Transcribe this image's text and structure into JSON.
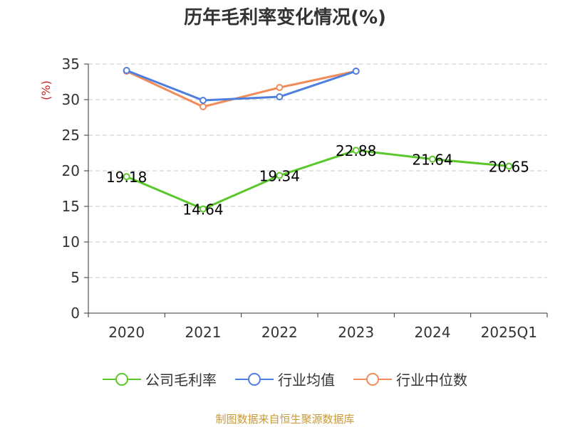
{
  "chart_data": {
    "type": "line",
    "title": "历年毛利率变化情况(%)",
    "ylabel": "(%)",
    "categories": [
      "2020",
      "2021",
      "2022",
      "2023",
      "2024",
      "2025Q1"
    ],
    "ylim": [
      0,
      35
    ],
    "yticks": [
      0,
      5,
      10,
      15,
      20,
      25,
      30,
      35
    ],
    "grid": true,
    "legend_position": "bottom",
    "series": [
      {
        "name": "公司毛利率",
        "color": "#5ac82b",
        "values": [
          19.18,
          14.64,
          19.34,
          22.88,
          21.64,
          20.65
        ],
        "labels": [
          "19.18",
          "14.64",
          "19.34",
          "22.88",
          "21.64",
          "20.65"
        ]
      },
      {
        "name": "行业均值",
        "color": "#4e7fde",
        "values": [
          34.1,
          29.9,
          30.4,
          34.0,
          null,
          null
        ]
      },
      {
        "name": "行业中位数",
        "color": "#f08c5a",
        "values": [
          34.0,
          29.0,
          31.7,
          34.0,
          null,
          null
        ]
      }
    ]
  },
  "source_text": "制图数据来自恒生聚源数据库"
}
